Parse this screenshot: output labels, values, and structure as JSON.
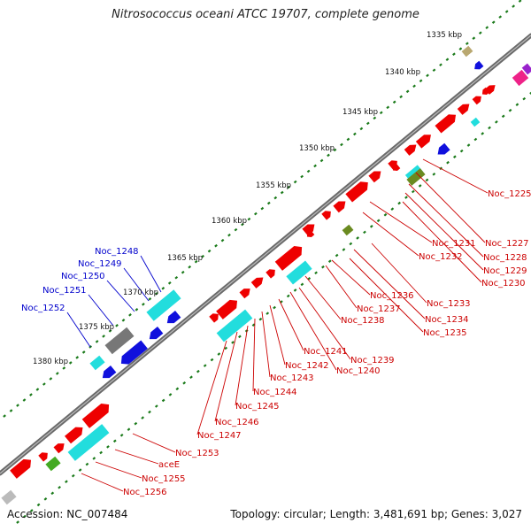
{
  "title": "Nitrosococcus oceani ATCC 19707, complete genome",
  "footer": {
    "accession": "Accession: NC_007484",
    "summary": "Topology: circular; Length: 3,481,691 bp; Genes: 3,027"
  },
  "colors": {
    "forward_gene": "#ee0000",
    "rna": "#22dddd",
    "reverse_gene": "#1010dd",
    "hypothetical": "#777777",
    "backbone": "#777777",
    "tick_green": "#1a7a1a",
    "label_red": "#cc0000",
    "label_blue": "#0000cc"
  },
  "scale_ticks": [
    {
      "id": "1335",
      "label": "1335 kbp"
    },
    {
      "id": "1340",
      "label": "1340 kbp"
    },
    {
      "id": "1345",
      "label": "1345 kbp"
    },
    {
      "id": "1350",
      "label": "1350 kbp"
    },
    {
      "id": "1355",
      "label": "1355 kbp"
    },
    {
      "id": "1360",
      "label": "1360 kbp"
    },
    {
      "id": "1365",
      "label": "1365 kbp"
    },
    {
      "id": "1370",
      "label": "1370 kbp"
    },
    {
      "id": "1375",
      "label": "1375 kbp"
    },
    {
      "id": "1380",
      "label": "1380 kbp"
    }
  ],
  "gene_labels_blue": [
    "Noc_1248",
    "Noc_1249",
    "Noc_1250",
    "Noc_1251",
    "Noc_1252"
  ],
  "gene_labels_red": [
    "Noc_1225",
    "Noc_1227",
    "Noc_1228",
    "Noc_1229",
    "Noc_1230",
    "Noc_1231",
    "Noc_1232",
    "Noc_1233",
    "Noc_1234",
    "Noc_1235",
    "Noc_1236",
    "Noc_1237",
    "Noc_1238",
    "Noc_1239",
    "Noc_1240",
    "Noc_1241",
    "Noc_1242",
    "Noc_1243",
    "Noc_1244",
    "Noc_1245",
    "Noc_1246",
    "Noc_1247",
    "Noc_1253",
    "aceE",
    "Noc_1255",
    "Noc_1256"
  ]
}
